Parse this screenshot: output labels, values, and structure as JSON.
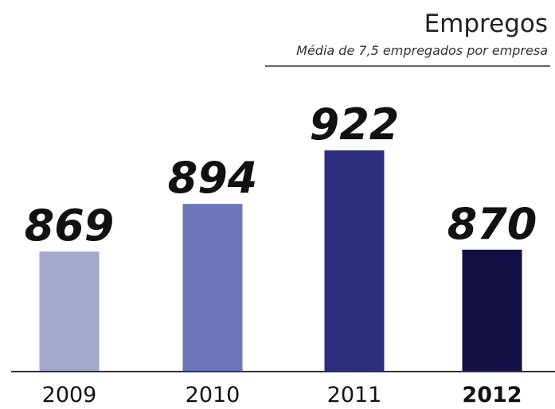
{
  "chart_data": {
    "type": "bar",
    "title": "Empregos",
    "subtitle": "Média de 7,5 empregados por empresa",
    "categories": [
      "2009",
      "2010",
      "2011",
      "2012"
    ],
    "values": [
      869,
      894,
      922,
      870
    ],
    "value_labels": [
      "869",
      "894",
      "922",
      "870"
    ],
    "highlight_category": "2012",
    "colors": [
      "#a2a8c9",
      "#6e76ba",
      "#2b2f7d",
      "#131046"
    ],
    "title_color": "#222222",
    "axis_color": "#333333",
    "grid": false,
    "legend": "none"
  }
}
